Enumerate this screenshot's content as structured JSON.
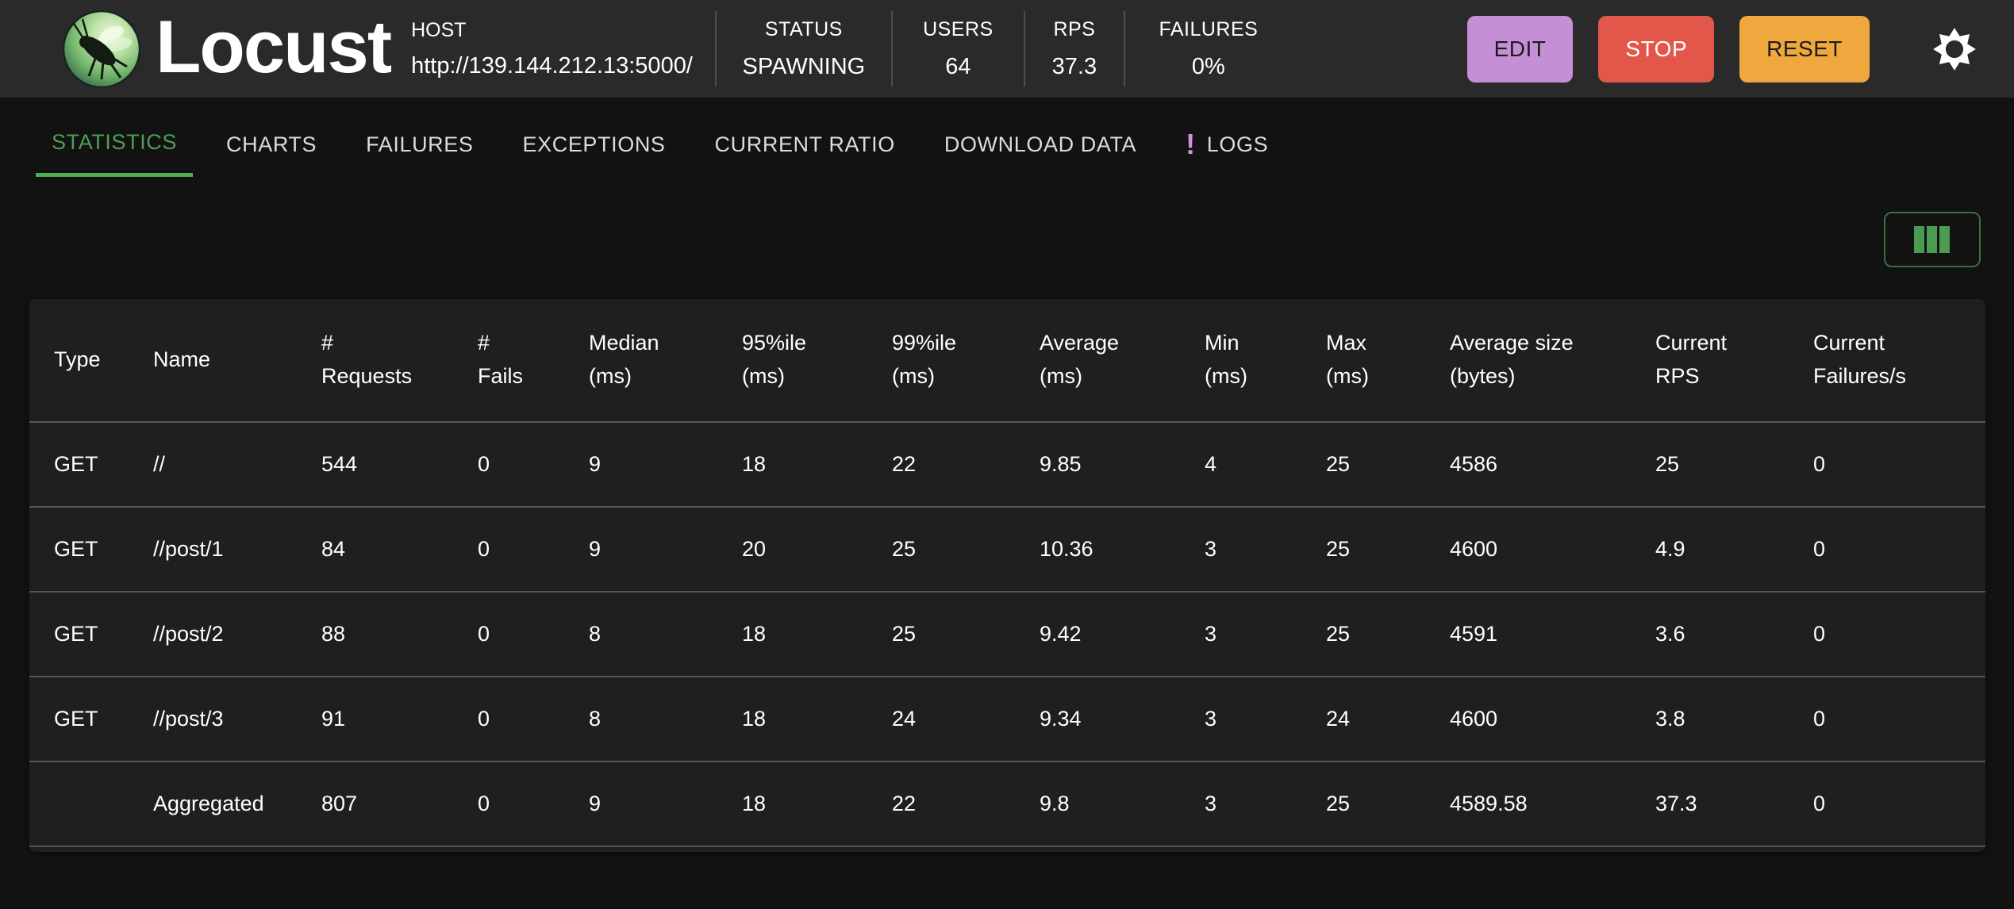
{
  "appbar": {
    "brand": "Locust",
    "host": {
      "label": "HOST",
      "url": "http://139.144.212.13:5000/"
    },
    "stats": [
      {
        "label": "STATUS",
        "value": "SPAWNING"
      },
      {
        "label": "USERS",
        "value": "64"
      },
      {
        "label": "RPS",
        "value": "37.3"
      },
      {
        "label": "FAILURES",
        "value": "0%"
      }
    ],
    "buttons": {
      "edit": "EDIT",
      "stop": "STOP",
      "reset": "RESET"
    }
  },
  "tabs": {
    "items": [
      {
        "label": "STATISTICS",
        "active": true
      },
      {
        "label": "CHARTS",
        "active": false
      },
      {
        "label": "FAILURES",
        "active": false
      },
      {
        "label": "EXCEPTIONS",
        "active": false
      },
      {
        "label": "CURRENT RATIO",
        "active": false
      },
      {
        "label": "DOWNLOAD DATA",
        "active": false
      },
      {
        "label": "LOGS",
        "active": false
      }
    ],
    "logs_badge": "!"
  },
  "table": {
    "columns": [
      "Type",
      "Name",
      "#\nRequests",
      "#\nFails",
      "Median\n(ms)",
      "95%ile\n(ms)",
      "99%ile\n(ms)",
      "Average\n(ms)",
      "Min\n(ms)",
      "Max\n(ms)",
      "Average size\n(bytes)",
      "Current\nRPS",
      "Current\nFailures/s"
    ],
    "rows": [
      [
        "GET",
        "//",
        "544",
        "0",
        "9",
        "18",
        "22",
        "9.85",
        "4",
        "25",
        "4586",
        "25",
        "0"
      ],
      [
        "GET",
        "//post/1",
        "84",
        "0",
        "9",
        "20",
        "25",
        "10.36",
        "3",
        "25",
        "4600",
        "4.9",
        "0"
      ],
      [
        "GET",
        "//post/2",
        "88",
        "0",
        "8",
        "18",
        "25",
        "9.42",
        "3",
        "25",
        "4591",
        "3.6",
        "0"
      ],
      [
        "GET",
        "//post/3",
        "91",
        "0",
        "8",
        "18",
        "24",
        "9.34",
        "3",
        "24",
        "4600",
        "3.8",
        "0"
      ],
      [
        "",
        "Aggregated",
        "807",
        "0",
        "9",
        "18",
        "22",
        "9.8",
        "3",
        "25",
        "4589.58",
        "37.3",
        "0"
      ]
    ]
  },
  "colors": {
    "accent_green": "#4e9e55",
    "tab_underline_green": "#4caf50",
    "edit_button": "#c58fd6",
    "stop_button": "#e2574a",
    "reset_button": "#efa73e",
    "logs_badge_purple": "#ce93d8",
    "appbar_background": "#2a2a2a",
    "page_background": "#121212",
    "paper_background": "#1f1f1f"
  },
  "icons": {
    "settings_gear": "gear",
    "view_columns": "columns",
    "locust_logo": "locust"
  }
}
